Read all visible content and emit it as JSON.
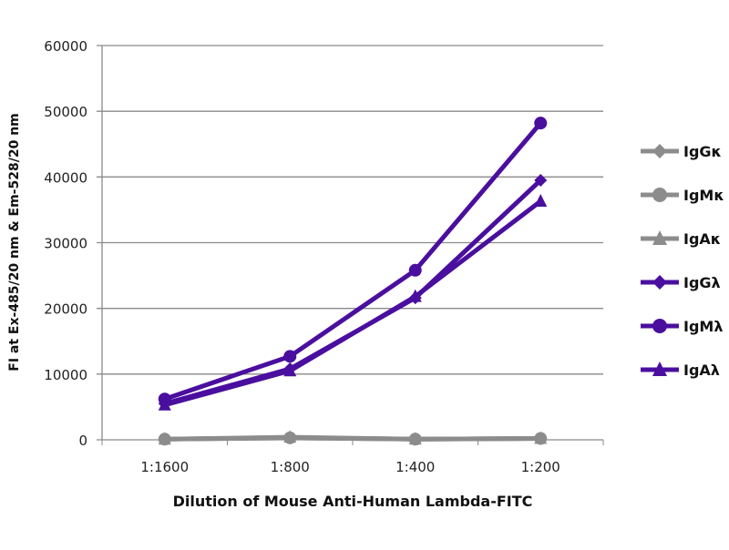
{
  "chart_data": {
    "type": "line",
    "title": "",
    "xlabel": "Dilution of Mouse Anti-Human Lambda-FITC",
    "ylabel": "FI at Ex-485/20 nm & Em-528/20 nm",
    "categories": [
      "1:1600",
      "1:800",
      "1:400",
      "1:200"
    ],
    "ylim": [
      0,
      60000
    ],
    "yticks": [
      0,
      10000,
      20000,
      30000,
      40000,
      50000,
      60000
    ],
    "grid": true,
    "legend_position": "right",
    "series": [
      {
        "name": "IgGκ",
        "marker": "diamond",
        "color": "#8c8c8c",
        "values": [
          100,
          300,
          100,
          200
        ]
      },
      {
        "name": "IgMκ",
        "marker": "circle",
        "color": "#8c8c8c",
        "values": [
          100,
          300,
          100,
          200
        ]
      },
      {
        "name": "IgAκ",
        "marker": "triangle",
        "color": "#8c8c8c",
        "values": [
          100,
          400,
          100,
          200
        ]
      },
      {
        "name": "IgGλ",
        "marker": "diamond",
        "color": "#4a0f9e",
        "values": [
          5500,
          10800,
          21600,
          39500
        ]
      },
      {
        "name": "IgMλ",
        "marker": "circle",
        "color": "#4a0f9e",
        "values": [
          6200,
          12700,
          25800,
          48200
        ]
      },
      {
        "name": "IgAλ",
        "marker": "triangle",
        "color": "#4a0f9e",
        "values": [
          5300,
          10500,
          21800,
          36300
        ]
      }
    ]
  }
}
